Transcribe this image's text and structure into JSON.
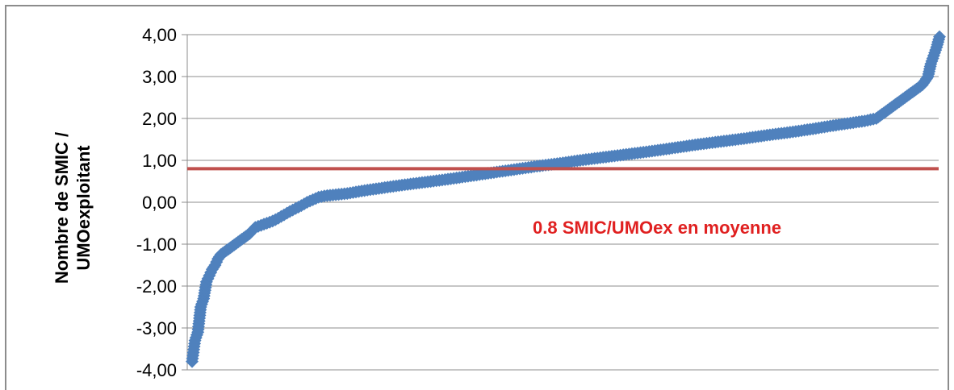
{
  "chart_data": {
    "type": "scatter",
    "ylabel": [
      "Nombre de SMIC /",
      "UMOexploitant"
    ],
    "xlabel": "",
    "ylim": [
      -4,
      4
    ],
    "yticks": [
      "4,00",
      "3,00",
      "2,00",
      "1,00",
      "0,00",
      "-1,00",
      "-2,00",
      "-3,00",
      "-4,00"
    ],
    "grid": true,
    "series": [
      {
        "color": "#4f81bd",
        "marker": "diamond",
        "points": [
          [
            0,
            -3.8
          ],
          [
            0.5,
            -3.3
          ],
          [
            1,
            -3.1
          ],
          [
            1.5,
            -2.5
          ],
          [
            2,
            -2.3
          ],
          [
            2.5,
            -1.9
          ],
          [
            3,
            -1.75
          ],
          [
            3.5,
            -1.6
          ],
          [
            4,
            -1.5
          ],
          [
            4.5,
            -1.35
          ],
          [
            5,
            -1.25
          ],
          [
            6,
            -1.15
          ],
          [
            7,
            -1.05
          ],
          [
            8,
            -0.95
          ],
          [
            9,
            -0.85
          ],
          [
            10,
            -0.75
          ],
          [
            11,
            -0.6
          ],
          [
            12,
            -0.55
          ],
          [
            13,
            -0.5
          ],
          [
            14,
            -0.45
          ],
          [
            15,
            -0.38
          ],
          [
            16,
            -0.3
          ],
          [
            17,
            -0.22
          ],
          [
            18,
            -0.15
          ],
          [
            19,
            -0.08
          ],
          [
            20,
            0.0
          ],
          [
            21,
            0.06
          ],
          [
            22,
            0.12
          ],
          [
            23,
            0.15
          ],
          [
            25,
            0.18
          ],
          [
            27,
            0.21
          ],
          [
            30,
            0.28
          ],
          [
            33,
            0.34
          ],
          [
            36,
            0.4
          ],
          [
            40,
            0.47
          ],
          [
            44,
            0.54
          ],
          [
            48,
            0.62
          ],
          [
            52,
            0.7
          ],
          [
            56,
            0.78
          ],
          [
            60,
            0.86
          ],
          [
            64,
            0.93
          ],
          [
            68,
            1.01
          ],
          [
            72,
            1.08
          ],
          [
            76,
            1.15
          ],
          [
            80,
            1.22
          ],
          [
            84,
            1.3
          ],
          [
            88,
            1.38
          ],
          [
            92,
            1.45
          ],
          [
            96,
            1.52
          ],
          [
            100,
            1.6
          ],
          [
            104,
            1.67
          ],
          [
            108,
            1.75
          ],
          [
            111,
            1.82
          ],
          [
            114,
            1.88
          ],
          [
            117,
            1.94
          ],
          [
            119,
            2.0
          ],
          [
            120,
            2.1
          ],
          [
            121,
            2.2
          ],
          [
            122,
            2.3
          ],
          [
            123,
            2.4
          ],
          [
            124,
            2.5
          ],
          [
            125,
            2.6
          ],
          [
            126,
            2.7
          ],
          [
            127,
            2.8
          ],
          [
            128,
            3.0
          ],
          [
            128.5,
            3.3
          ],
          [
            129,
            3.5
          ],
          [
            129.5,
            3.7
          ],
          [
            130,
            3.95
          ]
        ]
      }
    ],
    "reference_line": {
      "value": 0.8,
      "color": "#c0504d",
      "label": "0.8 SMIC/UMOex en moyenne",
      "label_color": "#e02020"
    }
  }
}
